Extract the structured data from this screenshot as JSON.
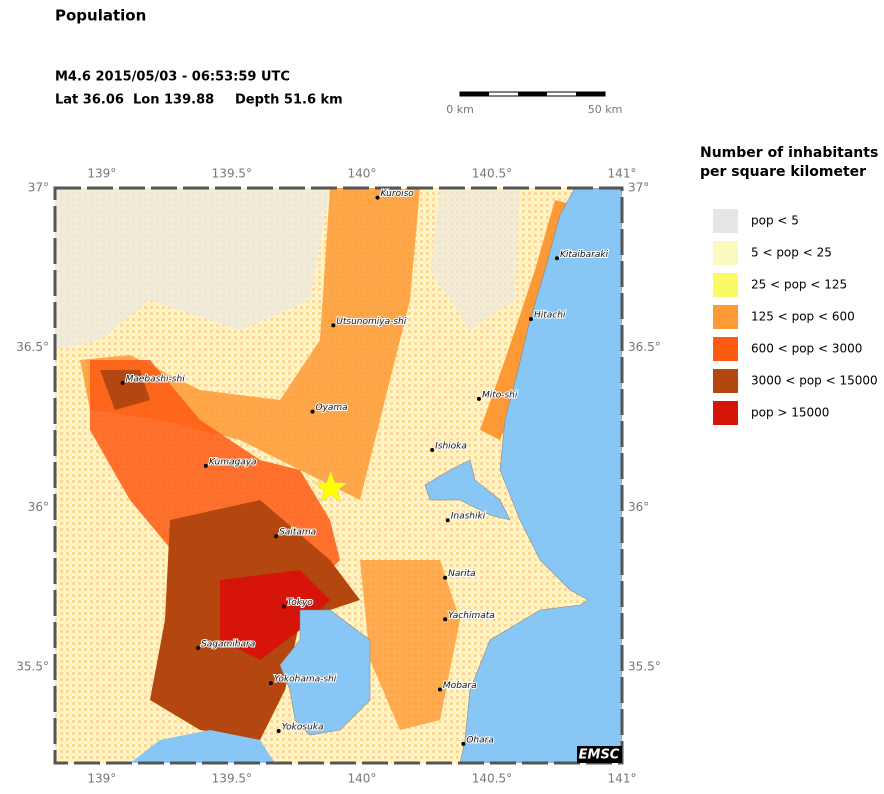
{
  "header": {
    "title": "Population",
    "event": "M4.6  2015/05/03 - 06:53:59 UTC",
    "lat": {
      "value": 36.06,
      "label": "Lat 36.06"
    },
    "lon": {
      "value": 139.88,
      "label": "Lon 139.88"
    },
    "depth": "Depth  51.6 km"
  },
  "scale_bar": {
    "start_label": "0 km",
    "end_label": "50 km"
  },
  "map": {
    "lonlim": [
      138.82,
      141
    ],
    "latlim": [
      35.2,
      37
    ],
    "lon_ticks": [
      {
        "value": 139,
        "label": "139°"
      },
      {
        "value": 139.5,
        "label": "139.5°"
      },
      {
        "value": 140,
        "label": "140°"
      },
      {
        "value": 140.5,
        "label": "140.5°"
      },
      {
        "value": 141,
        "label": "141°"
      }
    ],
    "lat_ticks": [
      {
        "value": 37,
        "label": "37°"
      },
      {
        "value": 36.5,
        "label": "36.5°"
      },
      {
        "value": 36,
        "label": "36°"
      },
      {
        "value": 35.5,
        "label": "35.5°"
      }
    ],
    "cities": [
      {
        "name": "Kuroiso",
        "lon": 140.06,
        "lat": 36.97
      },
      {
        "name": "Kitaibaraki",
        "lon": 140.75,
        "lat": 36.78
      },
      {
        "name": "Hitachi",
        "lon": 140.65,
        "lat": 36.59
      },
      {
        "name": "Utsunomiya-shi",
        "lon": 139.89,
        "lat": 36.57
      },
      {
        "name": "Maebashi-shi",
        "lon": 139.08,
        "lat": 36.39
      },
      {
        "name": "Mito-shi",
        "lon": 140.45,
        "lat": 36.34
      },
      {
        "name": "Oyama",
        "lon": 139.81,
        "lat": 36.3
      },
      {
        "name": "Ishioka",
        "lon": 140.27,
        "lat": 36.18
      },
      {
        "name": "Kumagaya",
        "lon": 139.4,
        "lat": 36.13
      },
      {
        "name": "Inashiki",
        "lon": 140.33,
        "lat": 35.96
      },
      {
        "name": "Saitama",
        "lon": 139.67,
        "lat": 35.91
      },
      {
        "name": "Narita",
        "lon": 140.32,
        "lat": 35.78
      },
      {
        "name": "Tokyo",
        "lon": 139.7,
        "lat": 35.69
      },
      {
        "name": "Yachimata",
        "lon": 140.32,
        "lat": 35.65
      },
      {
        "name": "Sagamihara",
        "lon": 139.37,
        "lat": 35.56
      },
      {
        "name": "Yokohama-shi",
        "lon": 139.65,
        "lat": 35.45
      },
      {
        "name": "Mobara",
        "lon": 140.3,
        "lat": 35.43
      },
      {
        "name": "Yokosuka",
        "lon": 139.68,
        "lat": 35.3
      },
      {
        "name": "Ohara",
        "lon": 140.39,
        "lat": 35.26
      }
    ],
    "epicenter_color": "#ffff00",
    "credit": "EMSC"
  },
  "legend": {
    "title_lines": [
      "Number of inhabitants",
      "per square kilometer"
    ],
    "items": [
      {
        "label": "pop < 5",
        "color": "#e6e6e6"
      },
      {
        "label": "5 < pop < 25",
        "color": "#fafabe"
      },
      {
        "label": "25 < pop < 125",
        "color": "#fafa64"
      },
      {
        "label": "125 < pop < 600",
        "color": "#fd9a35"
      },
      {
        "label": "600 < pop < 3000",
        "color": "#fd5a14"
      },
      {
        "label": "3000 < pop < 15000",
        "color": "#b4460f"
      },
      {
        "label": "pop > 15000",
        "color": "#d7140a"
      }
    ]
  }
}
